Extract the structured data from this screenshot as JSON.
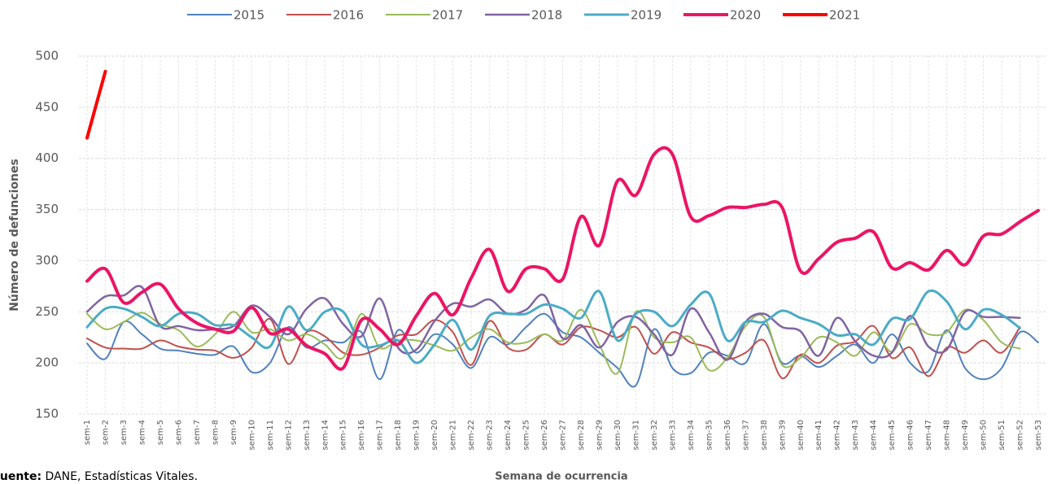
{
  "chart_data": {
    "type": "line",
    "y_label": "Número de defunciones",
    "x_label": "Semana de ocurrencia",
    "source_label": "Fuente:",
    "source": "DANE, Estadísticas Vitales.",
    "categories": [
      "sem-1",
      "sem-2",
      "sem-3",
      "sem-4",
      "sem-5",
      "sem-6",
      "sem-7",
      "sem-8",
      "sem-9",
      "sem-10",
      "sem-11",
      "sem-12",
      "sem-13",
      "sem-14",
      "sem-15",
      "sem-16",
      "sem-17",
      "sem-18",
      "sem-19",
      "sem-20",
      "sem-21",
      "sem-22",
      "sem-23",
      "sem-24",
      "sem-25",
      "sem-26",
      "sem-27",
      "sem-28",
      "sem-29",
      "sem-30",
      "sem-31",
      "sem-32",
      "sem-33",
      "sem-34",
      "sem-35",
      "sem-36",
      "sem-37",
      "sem-38",
      "sem-39",
      "sem-40",
      "sem-41",
      "sem-42",
      "sem-43",
      "sem-44",
      "sem-45",
      "sem-46",
      "sem-47",
      "sem-48",
      "sem-49",
      "sem-50",
      "sem-51",
      "sem-52",
      "sem-53"
    ],
    "ylim": [
      150,
      500
    ],
    "yticks": [
      150,
      200,
      250,
      300,
      350,
      400,
      450,
      500
    ],
    "grid": true,
    "smooth": true,
    "legend": "top",
    "series": [
      {
        "name": "2015",
        "color": "#4f81bd",
        "width": 2,
        "values": [
          219,
          204,
          240,
          228,
          214,
          212,
          209,
          208,
          216,
          191,
          200,
          235,
          215,
          222,
          220,
          230,
          184,
          232,
          210,
          228,
          218,
          195,
          225,
          218,
          235,
          248,
          230,
          225,
          210,
          195,
          178,
          233,
          195,
          190,
          210,
          207,
          200,
          238,
          200,
          207,
          196,
          207,
          218,
          200,
          228,
          200,
          192,
          232,
          195,
          184,
          195,
          230,
          220
        ]
      },
      {
        "name": "2016",
        "color": "#c0504d",
        "width": 2,
        "values": [
          224,
          215,
          214,
          214,
          222,
          216,
          213,
          212,
          205,
          215,
          243,
          199,
          230,
          226,
          210,
          208,
          215,
          227,
          228,
          242,
          230,
          198,
          241,
          215,
          213,
          228,
          218,
          235,
          232,
          225,
          235,
          209,
          230,
          220,
          215,
          204,
          210,
          222,
          185,
          208,
          200,
          217,
          221,
          236,
          205,
          215,
          187,
          215,
          210,
          222,
          210,
          235,
          null
        ]
      },
      {
        "name": "2017",
        "color": "#9bbb59",
        "width": 2,
        "values": [
          248,
          233,
          240,
          249,
          238,
          232,
          216,
          228,
          250,
          230,
          233,
          222,
          228,
          218,
          205,
          248,
          215,
          222,
          222,
          217,
          212,
          225,
          233,
          220,
          220,
          228,
          222,
          252,
          218,
          190,
          250,
          225,
          220,
          225,
          193,
          205,
          236,
          245,
          198,
          205,
          225,
          220,
          207,
          230,
          211,
          238,
          228,
          230,
          252,
          242,
          220,
          214,
          null
        ]
      },
      {
        "name": "2018",
        "color": "#8064a2",
        "width": 2.5,
        "values": [
          250,
          265,
          266,
          274,
          236,
          236,
          232,
          233,
          236,
          256,
          245,
          228,
          253,
          263,
          238,
          226,
          263,
          215,
          213,
          241,
          258,
          255,
          262,
          248,
          252,
          266,
          224,
          237,
          215,
          240,
          245,
          228,
          208,
          253,
          230,
          203,
          240,
          248,
          235,
          231,
          207,
          244,
          221,
          207,
          210,
          246,
          216,
          213,
          250,
          245,
          245,
          244,
          null
        ]
      },
      {
        "name": "2019",
        "color": "#4bacc6",
        "width": 3,
        "values": [
          235,
          253,
          253,
          245,
          236,
          248,
          248,
          237,
          237,
          225,
          216,
          255,
          232,
          250,
          250,
          218,
          217,
          222,
          200,
          218,
          242,
          213,
          246,
          248,
          248,
          257,
          253,
          244,
          270,
          222,
          248,
          250,
          236,
          257,
          268,
          222,
          240,
          240,
          251,
          244,
          238,
          227,
          228,
          218,
          243,
          243,
          270,
          260,
          233,
          252,
          247,
          234,
          null
        ]
      },
      {
        "name": "2020",
        "color": "#eb1565",
        "width": 4,
        "values": [
          280,
          292,
          259,
          269,
          277,
          253,
          239,
          233,
          231,
          254,
          229,
          233,
          217,
          209,
          195,
          242,
          233,
          218,
          246,
          268,
          247,
          283,
          311,
          270,
          292,
          292,
          282,
          343,
          315,
          378,
          364,
          404,
          404,
          343,
          344,
          352,
          352,
          355,
          352,
          290,
          302,
          318,
          322,
          328,
          293,
          298,
          291,
          310,
          296,
          324,
          326,
          338,
          349
        ]
      },
      {
        "name": "2021",
        "color": "#ff0000",
        "width": 4,
        "values": [
          420,
          485,
          null,
          null,
          null,
          null,
          null,
          null,
          null,
          null,
          null,
          null,
          null,
          null,
          null,
          null,
          null,
          null,
          null,
          null,
          null,
          null,
          null,
          null,
          null,
          null,
          null,
          null,
          null,
          null,
          null,
          null,
          null,
          null,
          null,
          null,
          null,
          null,
          null,
          null,
          null,
          null,
          null,
          null,
          null,
          null,
          null,
          null,
          null,
          null,
          null,
          null,
          null
        ]
      }
    ]
  }
}
